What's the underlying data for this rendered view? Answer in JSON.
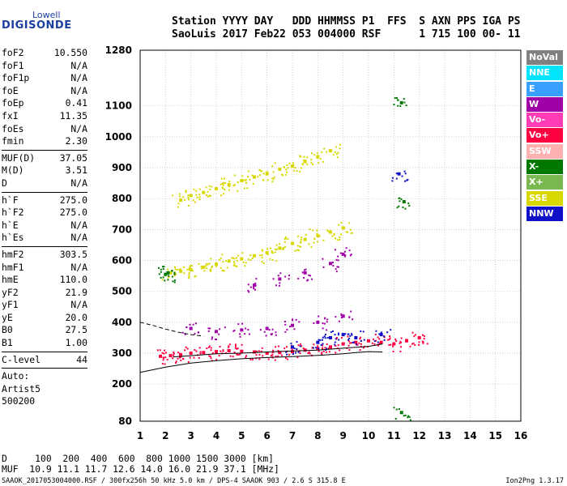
{
  "logo": {
    "top": "Lowell",
    "bottom": "DIGISONDE"
  },
  "header": {
    "line1": "Station YYYY DAY   DDD HHMMSS P1  FFS  S AXN PPS IGA PS",
    "line2": "SaoLuis 2017 Feb22 053 004000 RSF      1 715 100 00- 11"
  },
  "params": {
    "group1": [
      {
        "label": "foF2",
        "value": "10.550"
      },
      {
        "label": "foF1",
        "value": "N/A"
      },
      {
        "label": "foF1p",
        "value": "N/A"
      },
      {
        "label": "foE",
        "value": "N/A"
      },
      {
        "label": "foEp",
        "value": "0.41"
      },
      {
        "label": "fxI",
        "value": "11.35"
      },
      {
        "label": "foEs",
        "value": "N/A"
      },
      {
        "label": "fmin",
        "value": "2.30"
      }
    ],
    "group2": [
      {
        "label": "MUF(D)",
        "value": "37.05"
      },
      {
        "label": "M(D)",
        "value": "3.51"
      },
      {
        "label": "D",
        "value": "N/A"
      }
    ],
    "group3": [
      {
        "label": "h`F",
        "value": "275.0"
      },
      {
        "label": "h`F2",
        "value": "275.0"
      },
      {
        "label": "h`E",
        "value": "N/A"
      },
      {
        "label": "h`Es",
        "value": "N/A"
      }
    ],
    "group4": [
      {
        "label": "hmF2",
        "value": "303.5"
      },
      {
        "label": "hmF1",
        "value": "N/A"
      },
      {
        "label": "hmE",
        "value": "110.0"
      },
      {
        "label": "yF2",
        "value": "21.9"
      },
      {
        "label": "yF1",
        "value": "N/A"
      },
      {
        "label": "yE",
        "value": "20.0"
      },
      {
        "label": "B0",
        "value": "27.5"
      },
      {
        "label": "B1",
        "value": "1.00"
      }
    ],
    "group5": [
      {
        "label": "C-level",
        "value": "44"
      }
    ],
    "autoscaling": [
      "Auto:",
      "Artist5",
      "500200"
    ]
  },
  "footer": {
    "line1": "D     100  200  400  600  800 1000 1500 3000 [km]",
    "line2": "MUF  10.9 11.1 11.7 12.6 14.0 16.0 21.9 37.1 [MHz]",
    "line3": "SAAOK_2017053004000.RSF / 300fx256h 50 kHz 5.0 km / DPS-4 SAAOK 903 / 2.6 S 315.8 E",
    "version": "Ion2Png 1.3.17"
  },
  "legend": [
    {
      "label": "NoVal",
      "bg": "#808080",
      "fg": "#ffffff"
    },
    {
      "label": "NNE",
      "bg": "#00e5ff",
      "fg": "#ffffff"
    },
    {
      "label": "E",
      "bg": "#3aa0ff",
      "fg": "#ffffff"
    },
    {
      "label": "W",
      "bg": "#a000a8",
      "fg": "#ffffff"
    },
    {
      "label": "Vo-",
      "bg": "#ff3cb4",
      "fg": "#ffffff"
    },
    {
      "label": "Vo+",
      "bg": "#ff0040",
      "fg": "#ffffff"
    },
    {
      "label": "SSW",
      "bg": "#ffb0b0",
      "fg": "#ffffff"
    },
    {
      "label": "X-",
      "bg": "#007800",
      "fg": "#ffffff"
    },
    {
      "label": "X+",
      "bg": "#7ab850",
      "fg": "#ffffff"
    },
    {
      "label": "SSE",
      "bg": "#d8d800",
      "fg": "#ffffff"
    },
    {
      "label": "NNW",
      "bg": "#1010c8",
      "fg": "#ffffff"
    }
  ],
  "chart_data": {
    "type": "scatter",
    "title": "",
    "xlabel": "",
    "ylabel": "",
    "xlim": [
      1,
      16
    ],
    "ylim": [
      80,
      1280
    ],
    "x_ticks": [
      1,
      2,
      3,
      4,
      5,
      6,
      7,
      8,
      9,
      10,
      11,
      12,
      13,
      14,
      15,
      16
    ],
    "y_ticks": [
      80,
      200,
      300,
      400,
      500,
      600,
      700,
      800,
      900,
      1000,
      1100,
      1280
    ],
    "grid": true,
    "legend_placement": "right",
    "series": [
      {
        "name": "SSE",
        "color": "#d8d800",
        "points": [
          [
            2.2,
            560
          ],
          [
            2.6,
            565
          ],
          [
            3.0,
            570
          ],
          [
            3.5,
            578
          ],
          [
            4.0,
            588
          ],
          [
            4.5,
            598
          ],
          [
            5.0,
            605
          ],
          [
            5.5,
            615
          ],
          [
            6.0,
            625
          ],
          [
            6.5,
            640
          ],
          [
            7.0,
            655
          ],
          [
            7.5,
            668
          ],
          [
            8.0,
            680
          ],
          [
            8.5,
            692
          ],
          [
            9.0,
            705
          ],
          [
            2.6,
            795
          ],
          [
            3.0,
            810
          ],
          [
            3.5,
            820
          ],
          [
            4.0,
            832
          ],
          [
            4.5,
            845
          ],
          [
            5.0,
            858
          ],
          [
            5.5,
            870
          ],
          [
            6.0,
            880
          ],
          [
            6.5,
            895
          ],
          [
            7.0,
            905
          ],
          [
            7.5,
            920
          ],
          [
            8.0,
            935
          ],
          [
            8.5,
            955
          ]
        ]
      },
      {
        "name": "Vo+",
        "color": "#ff0040",
        "points": [
          [
            1.8,
            290
          ],
          [
            2.2,
            292
          ],
          [
            2.6,
            295
          ],
          [
            3.0,
            300
          ],
          [
            3.5,
            302
          ],
          [
            4.0,
            305
          ],
          [
            4.5,
            308
          ],
          [
            5.0,
            306
          ],
          [
            5.5,
            304
          ],
          [
            6.0,
            300
          ],
          [
            6.5,
            302
          ],
          [
            7.0,
            305
          ],
          [
            7.5,
            310
          ],
          [
            8.0,
            315
          ],
          [
            8.5,
            320
          ],
          [
            9.0,
            330
          ],
          [
            9.5,
            335
          ],
          [
            10.0,
            340
          ],
          [
            10.5,
            335
          ],
          [
            11.0,
            330
          ],
          [
            11.5,
            340
          ],
          [
            12.0,
            350
          ]
        ]
      },
      {
        "name": "W",
        "color": "#a000a8",
        "points": [
          [
            3.0,
            380
          ],
          [
            4.0,
            370
          ],
          [
            5.0,
            375
          ],
          [
            6.0,
            380
          ],
          [
            7.0,
            390
          ],
          [
            8.0,
            400
          ],
          [
            9.0,
            420
          ],
          [
            5.5,
            520
          ],
          [
            6.5,
            540
          ],
          [
            7.5,
            560
          ],
          [
            8.5,
            590
          ],
          [
            9.0,
            620
          ]
        ]
      },
      {
        "name": "NNW",
        "color": "#1010c8",
        "points": [
          [
            7.0,
            320
          ],
          [
            8.0,
            335
          ],
          [
            8.5,
            350
          ],
          [
            9.0,
            360
          ],
          [
            9.5,
            350
          ],
          [
            10.5,
            360
          ],
          [
            11.2,
            880
          ]
        ]
      },
      {
        "name": "X-",
        "color": "#007800",
        "points": [
          [
            2.0,
            555
          ],
          [
            2.1,
            560
          ],
          [
            11.3,
            1110
          ],
          [
            11.4,
            790
          ],
          [
            11.3,
            108
          ]
        ]
      }
    ],
    "lines": [
      {
        "name": "profile",
        "style": "solid",
        "points": [
          [
            1.0,
            238
          ],
          [
            2.0,
            255
          ],
          [
            3.0,
            268
          ],
          [
            4.0,
            276
          ],
          [
            5.0,
            282
          ],
          [
            6.0,
            286
          ],
          [
            7.0,
            289
          ],
          [
            8.0,
            293
          ],
          [
            9.0,
            298
          ],
          [
            9.5,
            302
          ],
          [
            10.0,
            305
          ],
          [
            10.55,
            304
          ]
        ]
      },
      {
        "name": "trace",
        "style": "solid",
        "points": [
          [
            2.3,
            288
          ],
          [
            3.0,
            292
          ],
          [
            4.0,
            298
          ],
          [
            5.0,
            300
          ],
          [
            6.0,
            304
          ],
          [
            7.0,
            307
          ],
          [
            8.0,
            310
          ],
          [
            9.0,
            316
          ],
          [
            10.0,
            322
          ],
          [
            10.55,
            330
          ]
        ]
      },
      {
        "name": "model",
        "style": "dashed",
        "points": [
          [
            1.0,
            400
          ],
          [
            1.5,
            390
          ],
          [
            2.0,
            378
          ],
          [
            2.5,
            368
          ],
          [
            3.0,
            360
          ],
          [
            3.5,
            355
          ]
        ]
      }
    ]
  }
}
